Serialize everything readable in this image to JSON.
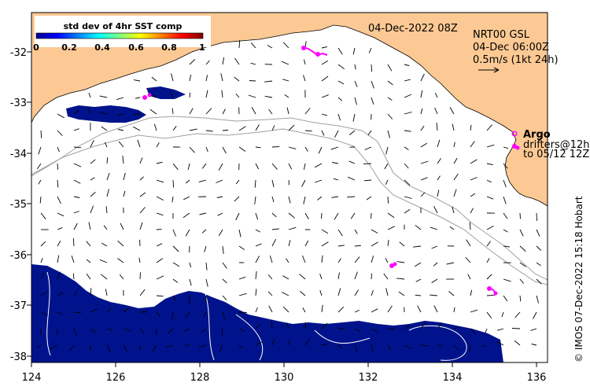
{
  "map": {
    "timestamp": "04-Dec-2022 08Z",
    "product_lines": [
      "NRT00 GSL",
      "04-Dec 06:00Z",
      "0.5m/s (1kt 24h)"
    ],
    "argo_label": "Argo",
    "drifters_line1": "drifters@12h",
    "drifters_line2": "to 05/12 12Z",
    "credit": "© IMOS 07-Dec-2022 15:18 Hobart",
    "colors": {
      "land": "#fcc994",
      "deep_fill": "#00138c",
      "argo": "#ff00ff",
      "isobath": "#a0a0a0",
      "contour": "#ffffff"
    }
  },
  "colorbar": {
    "title": "std dev of 4hr SST comp",
    "ticks": [
      "0",
      "0.2",
      "0.4",
      "0.6",
      "0.8",
      "1"
    ],
    "range": [
      0,
      1
    ],
    "colormap": "jet"
  },
  "axes": {
    "lon_ticks": [
      "124",
      "126",
      "128",
      "130",
      "132",
      "134",
      "136"
    ],
    "lat_ticks": [
      "-32",
      "-33",
      "-34",
      "-35",
      "-36",
      "-37",
      "-38"
    ],
    "lon_range": [
      124,
      136.5
    ],
    "lat_range": [
      -38.1,
      -31.3
    ]
  }
}
